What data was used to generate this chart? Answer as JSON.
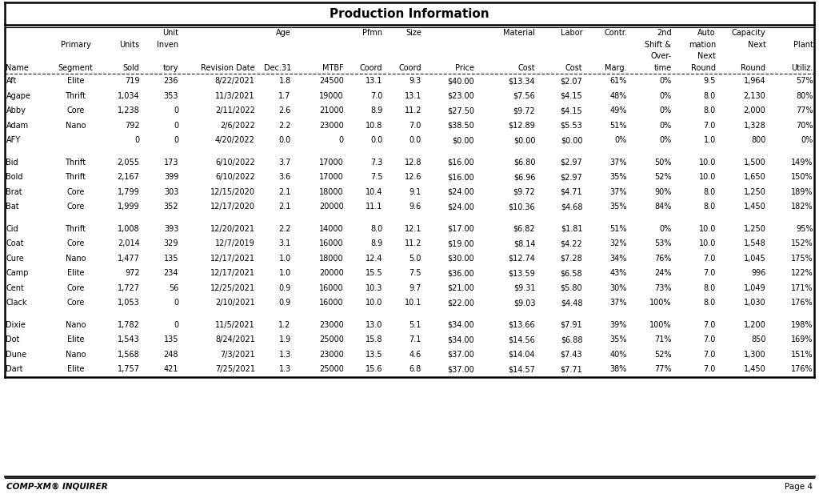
{
  "title": "Production Information",
  "footer_left": "COMP-XM® INQUIRER",
  "footer_right": "Page 4",
  "header_lines": [
    [
      "",
      "",
      "",
      "Unit",
      "",
      "Age",
      "",
      "Pfmn",
      "Size",
      "",
      "Material",
      "Labor",
      "Contr.",
      "2nd",
      "Auto",
      "Capacity",
      ""
    ],
    [
      "",
      "Primary",
      "Units",
      "Inven",
      "",
      "",
      "",
      "",
      "",
      "",
      "",
      "",
      "",
      "Shift &",
      "mation",
      "Next",
      "Plant"
    ],
    [
      "",
      "",
      "",
      "",
      "",
      "",
      "",
      "",
      "",
      "",
      "",
      "",
      "",
      "Over-",
      "Next",
      "",
      ""
    ],
    [
      "Name",
      "Segment",
      "Sold",
      "tory",
      "Revision Date",
      "Dec.31",
      "MTBF",
      "Coord",
      "Coord",
      "Price",
      "Cost",
      "Cost",
      "Marg.",
      "time",
      "Round",
      "Round",
      "Utiliz."
    ]
  ],
  "col_alignments": [
    "left",
    "center",
    "right",
    "right",
    "right",
    "right",
    "right",
    "right",
    "right",
    "right",
    "right",
    "right",
    "right",
    "right",
    "right",
    "right",
    "right"
  ],
  "groups": [
    [
      [
        "Aft",
        "Elite",
        "719",
        "236",
        "8/22/2021",
        "1.8",
        "24500",
        "13.1",
        "9.3",
        "$40.00",
        "$13.34",
        "$2.07",
        "61%",
        "0%",
        "9.5",
        "1,964",
        "57%"
      ],
      [
        "Agape",
        "Thrift",
        "1,034",
        "353",
        "11/3/2021",
        "1.7",
        "19000",
        "7.0",
        "13.1",
        "$23.00",
        "$7.56",
        "$4.15",
        "48%",
        "0%",
        "8.0",
        "2,130",
        "80%"
      ],
      [
        "Abby",
        "Core",
        "1,238",
        "0",
        "2/11/2022",
        "2.6",
        "21000",
        "8.9",
        "11.2",
        "$27.50",
        "$9.72",
        "$4.15",
        "49%",
        "0%",
        "8.0",
        "2,000",
        "77%"
      ],
      [
        "Adam",
        "Nano",
        "792",
        "0",
        "2/6/2022",
        "2.2",
        "23000",
        "10.8",
        "7.0",
        "$38.50",
        "$12.89",
        "$5.53",
        "51%",
        "0%",
        "7.0",
        "1,328",
        "70%"
      ],
      [
        "AFY",
        "",
        "0",
        "0",
        "4/20/2022",
        "0.0",
        "0",
        "0.0",
        "0.0",
        "$0.00",
        "$0.00",
        "$0.00",
        "0%",
        "0%",
        "1.0",
        "800",
        "0%"
      ]
    ],
    [
      [
        "Bid",
        "Thrift",
        "2,055",
        "173",
        "6/10/2022",
        "3.7",
        "17000",
        "7.3",
        "12.8",
        "$16.00",
        "$6.80",
        "$2.97",
        "37%",
        "50%",
        "10.0",
        "1,500",
        "149%"
      ],
      [
        "Bold",
        "Thrift",
        "2,167",
        "399",
        "6/10/2022",
        "3.6",
        "17000",
        "7.5",
        "12.6",
        "$16.00",
        "$6.96",
        "$2.97",
        "35%",
        "52%",
        "10.0",
        "1,650",
        "150%"
      ],
      [
        "Brat",
        "Core",
        "1,799",
        "303",
        "12/15/2020",
        "2.1",
        "18000",
        "10.4",
        "9.1",
        "$24.00",
        "$9.72",
        "$4.71",
        "37%",
        "90%",
        "8.0",
        "1,250",
        "189%"
      ],
      [
        "Bat",
        "Core",
        "1,999",
        "352",
        "12/17/2020",
        "2.1",
        "20000",
        "11.1",
        "9.6",
        "$24.00",
        "$10.36",
        "$4.68",
        "35%",
        "84%",
        "8.0",
        "1,450",
        "182%"
      ]
    ],
    [
      [
        "Cid",
        "Thrift",
        "1,008",
        "393",
        "12/20/2021",
        "2.2",
        "14000",
        "8.0",
        "12.1",
        "$17.00",
        "$6.82",
        "$1.81",
        "51%",
        "0%",
        "10.0",
        "1,250",
        "95%"
      ],
      [
        "Coat",
        "Core",
        "2,014",
        "329",
        "12/7/2019",
        "3.1",
        "16000",
        "8.9",
        "11.2",
        "$19.00",
        "$8.14",
        "$4.22",
        "32%",
        "53%",
        "10.0",
        "1,548",
        "152%"
      ],
      [
        "Cure",
        "Nano",
        "1,477",
        "135",
        "12/17/2021",
        "1.0",
        "18000",
        "12.4",
        "5.0",
        "$30.00",
        "$12.74",
        "$7.28",
        "34%",
        "76%",
        "7.0",
        "1,045",
        "175%"
      ],
      [
        "Camp",
        "Elite",
        "972",
        "234",
        "12/17/2021",
        "1.0",
        "20000",
        "15.5",
        "7.5",
        "$36.00",
        "$13.59",
        "$6.58",
        "43%",
        "24%",
        "7.0",
        "996",
        "122%"
      ],
      [
        "Cent",
        "Core",
        "1,727",
        "56",
        "12/25/2021",
        "0.9",
        "16000",
        "10.3",
        "9.7",
        "$21.00",
        "$9.31",
        "$5.80",
        "30%",
        "73%",
        "8.0",
        "1,049",
        "171%"
      ],
      [
        "Clack",
        "Core",
        "1,053",
        "0",
        "2/10/2021",
        "0.9",
        "16000",
        "10.0",
        "10.1",
        "$22.00",
        "$9.03",
        "$4.48",
        "37%",
        "100%",
        "8.0",
        "1,030",
        "176%"
      ]
    ],
    [
      [
        "Dixie",
        "Nano",
        "1,782",
        "0",
        "11/5/2021",
        "1.2",
        "23000",
        "13.0",
        "5.1",
        "$34.00",
        "$13.66",
        "$7.91",
        "39%",
        "100%",
        "7.0",
        "1,200",
        "198%"
      ],
      [
        "Dot",
        "Elite",
        "1,543",
        "135",
        "8/24/2021",
        "1.9",
        "25000",
        "15.8",
        "7.1",
        "$34.00",
        "$14.56",
        "$6.88",
        "35%",
        "71%",
        "7.0",
        "850",
        "169%"
      ],
      [
        "Dune",
        "Nano",
        "1,568",
        "248",
        "7/3/2021",
        "1.3",
        "23000",
        "13.5",
        "4.6",
        "$37.00",
        "$14.04",
        "$7.43",
        "40%",
        "52%",
        "7.0",
        "1,300",
        "151%"
      ],
      [
        "Dart",
        "Elite",
        "1,757",
        "421",
        "7/25/2021",
        "1.3",
        "25000",
        "15.6",
        "6.8",
        "$37.00",
        "$14.57",
        "$7.71",
        "38%",
        "77%",
        "7.0",
        "1,450",
        "176%"
      ]
    ]
  ],
  "col_widths_rel": [
    3.2,
    3.8,
    2.8,
    2.8,
    5.5,
    2.6,
    3.8,
    2.8,
    2.8,
    3.8,
    4.4,
    3.4,
    3.2,
    3.2,
    3.2,
    3.6,
    3.4
  ],
  "font_size": 7.0,
  "title_font_size": 11,
  "footer_font_size": 7.5,
  "bg_color": "#ffffff",
  "line_color": "#000000"
}
